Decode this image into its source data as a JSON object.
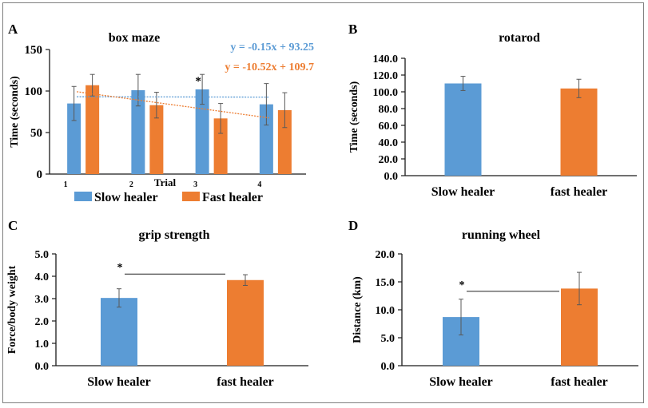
{
  "figure": {
    "panel_labels": [
      "A",
      "B",
      "C",
      "D"
    ]
  },
  "colors": {
    "slow": "#5b9bd5",
    "fast": "#ed7d31",
    "axis": "#1a1a1a",
    "error_bar": "#595959"
  },
  "chart_data": [
    {
      "panel": "A",
      "type": "bar",
      "title": "box maze",
      "xlabel": "Trial",
      "ylabel": "Time (seconds)",
      "categories": [
        "1",
        "2",
        "3",
        "4"
      ],
      "ylim": [
        0,
        150
      ],
      "yticks": [
        "0",
        "50",
        "100",
        "150"
      ],
      "series": [
        {
          "name": "Slow healer",
          "color": "#5b9bd5",
          "values": [
            85,
            101,
            102,
            84
          ],
          "error": [
            20.5,
            19,
            18,
            25
          ]
        },
        {
          "name": "Fast healer",
          "color": "#ed7d31",
          "values": [
            107,
            83,
            67,
            77
          ],
          "error": [
            13,
            15.5,
            18,
            21
          ]
        }
      ],
      "trendlines": [
        {
          "series": "Slow healer",
          "equation": "y = -0.15x + 93.25",
          "slope": -0.15,
          "intercept": 93.25,
          "color": "#5b9bd5"
        },
        {
          "series": "Fast healer",
          "equation": "y = -10.52x + 109.7",
          "slope": -10.52,
          "intercept": 109.7,
          "color": "#ed7d31"
        }
      ],
      "annotations": [
        {
          "text": "*",
          "category": "3",
          "series": "Slow healer"
        }
      ],
      "legend": {
        "entries": [
          "Slow healer",
          "Fast healer"
        ],
        "position": "bottom"
      },
      "grid": false
    },
    {
      "panel": "B",
      "type": "bar",
      "title": "rotarod",
      "xlabel": "",
      "ylabel": "Time (seconds)",
      "categories": [
        "Slow healer",
        "fast healer"
      ],
      "ylim": [
        0,
        140
      ],
      "yticks": [
        "0.0",
        "20.0",
        "40.0",
        "60.0",
        "80.0",
        "100.0",
        "120.0",
        "140.0"
      ],
      "values": [
        110,
        104
      ],
      "error": [
        8.5,
        11
      ],
      "colors": [
        "#5b9bd5",
        "#ed7d31"
      ],
      "grid": false
    },
    {
      "panel": "C",
      "type": "bar",
      "title": "grip strength",
      "xlabel": "",
      "ylabel": "Force/body weight",
      "categories": [
        "Slow healer",
        "fast healer"
      ],
      "ylim": [
        0,
        5
      ],
      "yticks": [
        "0.0",
        "1.0",
        "2.0",
        "3.0",
        "4.0",
        "5.0"
      ],
      "values": [
        3.03,
        3.83
      ],
      "error": [
        0.41,
        0.24
      ],
      "colors": [
        "#5b9bd5",
        "#ed7d31"
      ],
      "significance": {
        "text": "*",
        "between": [
          "Slow healer",
          "fast healer"
        ],
        "level": 4.1
      },
      "grid": false
    },
    {
      "panel": "D",
      "type": "bar",
      "title": "running wheel",
      "xlabel": "",
      "ylabel": "Distance (km)",
      "categories": [
        "Slow healer",
        "fast healer"
      ],
      "ylim": [
        0,
        20
      ],
      "yticks": [
        "0.0",
        "5.0",
        "10.0",
        "15.0",
        "20.0"
      ],
      "values": [
        8.7,
        13.8
      ],
      "error": [
        3.2,
        2.9
      ],
      "colors": [
        "#5b9bd5",
        "#ed7d31"
      ],
      "significance": {
        "text": "*",
        "between": [
          "Slow healer",
          "fast healer"
        ],
        "level": 13.3
      },
      "grid": false
    }
  ]
}
